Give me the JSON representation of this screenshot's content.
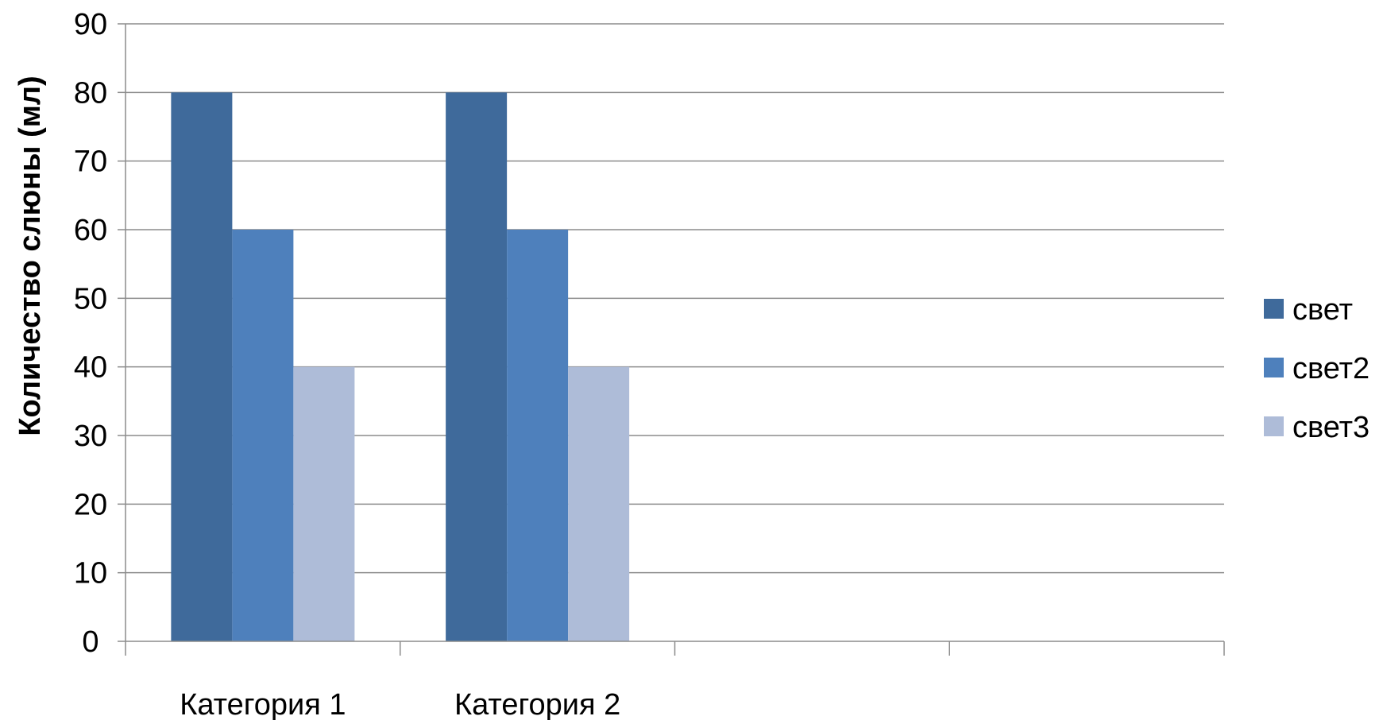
{
  "chart_data": {
    "type": "bar",
    "title": "",
    "xlabel": "",
    "ylabel": "Количество слюны (мл)",
    "ylim": [
      0,
      90
    ],
    "yticks": [
      0,
      10,
      20,
      30,
      40,
      50,
      60,
      70,
      80,
      90
    ],
    "categories": [
      "Категория 1",
      "Категория 2",
      "",
      ""
    ],
    "series": [
      {
        "name": "свет",
        "values": [
          80,
          80,
          null,
          null
        ],
        "color": "#3F6A9B"
      },
      {
        "name": "свет2",
        "values": [
          60,
          60,
          null,
          null
        ],
        "color": "#4E80BC"
      },
      {
        "name": "свет3",
        "values": [
          40,
          40,
          null,
          null
        ],
        "color": "#AEBCD8"
      }
    ],
    "grid": true,
    "legend": "right"
  }
}
